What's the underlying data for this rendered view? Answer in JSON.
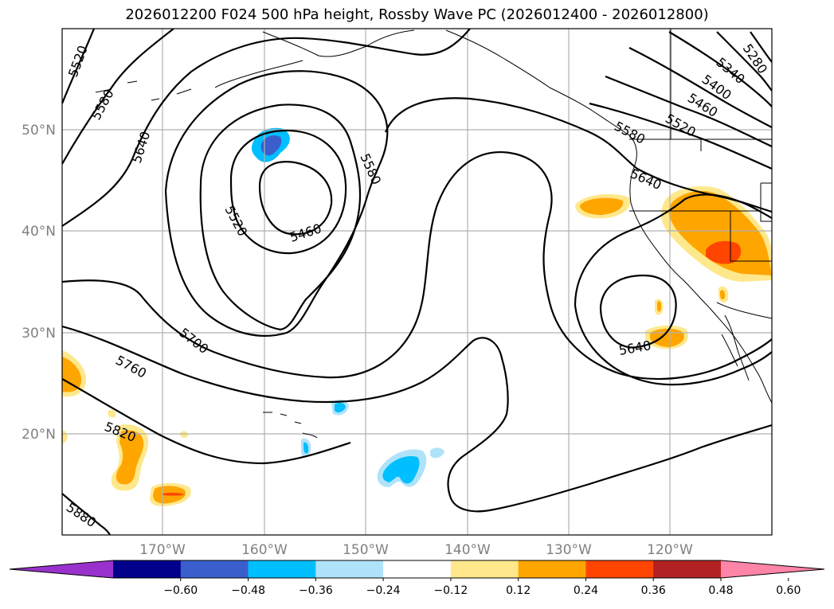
{
  "title": "2026012200 F024 500 hPa height, Rossby Wave PC (2026012400 - 2026012800)",
  "map": {
    "lat_labels": [
      "50°N",
      "40°N",
      "30°N",
      "20°N"
    ],
    "lon_labels": [
      "170°W",
      "160°W",
      "150°W",
      "140°W",
      "130°W",
      "120°W"
    ],
    "contour_labels": [
      "5520",
      "5580",
      "5640",
      "5520",
      "5460",
      "5580",
      "5700",
      "5760",
      "5820",
      "5880",
      "5640",
      "5580",
      "5640",
      "5520",
      "5460",
      "5400",
      "5340",
      "5280"
    ]
  },
  "colorbar": {
    "ticks": [
      "−0.60",
      "−0.48",
      "−0.36",
      "−0.24",
      "−0.12",
      "0.12",
      "0.24",
      "0.36",
      "0.48",
      "0.60"
    ],
    "colors": [
      "#9932cc",
      "#00008b",
      "#3a5fcd",
      "#00bfff",
      "#afe3fa",
      "#ffffff",
      "#fee88b",
      "#ffa500",
      "#ff4500",
      "#b22222",
      "#ff85a8"
    ]
  }
}
